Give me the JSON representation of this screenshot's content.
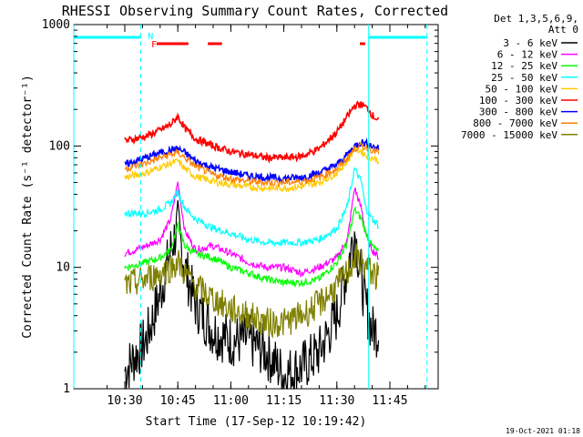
{
  "chart_data": {
    "type": "line",
    "title": "RHESSI Observing Summary Count Rates, Corrected",
    "xlabel": "Start Time (17-Sep-12 10:19:42)",
    "ylabel": "Corrected Count Rate (s⁻¹ detector⁻¹)",
    "yscale": "log",
    "ylim": [
      1,
      1000
    ],
    "xlim_minutes": [
      21.3,
      80.0
    ],
    "x_ticks": [
      {
        "t": 30,
        "label": "10:30"
      },
      {
        "t": 45,
        "label": "10:45"
      },
      {
        "t": 60,
        "label": "11:00"
      },
      {
        "t": 75,
        "label": "11:15"
      },
      {
        "t": 90,
        "label": "11:30"
      },
      {
        "t": 105,
        "label": "11:45"
      }
    ],
    "y_ticks": [
      {
        "v": 1,
        "label": "1"
      },
      {
        "v": 10,
        "label": "10"
      },
      {
        "v": 100,
        "label": "100"
      },
      {
        "v": 1000,
        "label": "1000"
      }
    ],
    "legend_header": [
      "Det 1,3,5,6,9,",
      "Att 0"
    ],
    "legend_position": "right",
    "series": [
      {
        "name": "3 - 6 keV",
        "color": "#000000",
        "x": [
          30,
          36,
          40,
          43,
          45,
          47,
          50,
          55,
          60,
          65,
          70,
          75,
          80,
          85,
          90,
          93,
          95,
          97,
          98,
          99,
          100,
          102
        ],
        "values": [
          1.4,
          2.5,
          6,
          14,
          22,
          10,
          5,
          3,
          2.5,
          2.5,
          2,
          1.3,
          1.5,
          2,
          4,
          10,
          20,
          8,
          5,
          4,
          3,
          3
        ]
      },
      {
        "name": "6 - 12 keV",
        "color": "#ff00ff",
        "x": [
          30,
          36,
          40,
          43,
          45,
          47,
          50,
          55,
          60,
          65,
          70,
          75,
          80,
          85,
          90,
          93,
          95,
          97,
          98,
          99,
          100,
          102
        ],
        "values": [
          13,
          15,
          17,
          25,
          50,
          20,
          14,
          15,
          13,
          11,
          10,
          10,
          9,
          10,
          12,
          17,
          45,
          30,
          20,
          16,
          14,
          12
        ]
      },
      {
        "name": "12 - 25 keV",
        "color": "#00ff00",
        "x": [
          30,
          36,
          40,
          43,
          45,
          47,
          50,
          55,
          60,
          65,
          70,
          75,
          80,
          85,
          90,
          93,
          95,
          97,
          98,
          99,
          100,
          102
        ],
        "values": [
          10,
          11,
          12,
          14,
          22,
          15,
          13,
          12,
          10,
          9,
          8,
          7.5,
          7.5,
          8,
          11,
          16,
          30,
          25,
          20,
          17,
          15,
          13
        ]
      },
      {
        "name": "25 - 50 keV",
        "color": "#00ffff",
        "x": [
          30,
          36,
          40,
          43,
          45,
          47,
          50,
          55,
          60,
          65,
          70,
          75,
          80,
          85,
          90,
          93,
          95,
          97,
          98,
          99,
          100,
          102
        ],
        "values": [
          28,
          28,
          30,
          34,
          42,
          31,
          25,
          21,
          19,
          17,
          16,
          16,
          16,
          17,
          21,
          32,
          65,
          50,
          32,
          28,
          25,
          22
        ]
      },
      {
        "name": "50 - 100 keV",
        "color": "#ffcc00",
        "x": [
          30,
          36,
          40,
          43,
          45,
          47,
          50,
          55,
          60,
          65,
          70,
          75,
          80,
          85,
          90,
          93,
          95,
          97,
          98,
          99,
          100,
          102
        ],
        "values": [
          55,
          60,
          67,
          72,
          75,
          65,
          56,
          51,
          48,
          46,
          45,
          45,
          46,
          50,
          60,
          75,
          95,
          90,
          85,
          82,
          80,
          76
        ]
      },
      {
        "name": "100 - 300 keV",
        "color": "#ff0000",
        "x": [
          30,
          36,
          40,
          43,
          45,
          47,
          50,
          55,
          60,
          65,
          70,
          75,
          80,
          85,
          90,
          93,
          95,
          97,
          98,
          99,
          100,
          102
        ],
        "values": [
          110,
          120,
          135,
          150,
          175,
          140,
          115,
          100,
          90,
          85,
          80,
          80,
          82,
          95,
          130,
          175,
          215,
          220,
          210,
          200,
          180,
          160
        ]
      },
      {
        "name": "300 - 800 keV",
        "color": "#0000ff",
        "x": [
          30,
          36,
          40,
          43,
          45,
          47,
          50,
          55,
          60,
          65,
          70,
          75,
          80,
          85,
          90,
          93,
          95,
          97,
          98,
          99,
          100,
          102
        ],
        "values": [
          70,
          80,
          88,
          92,
          95,
          88,
          75,
          66,
          61,
          57,
          55,
          54,
          55,
          60,
          70,
          85,
          100,
          108,
          105,
          103,
          100,
          95
        ]
      },
      {
        "name": "800 - 7000 keV",
        "color": "#ff7f00",
        "x": [
          30,
          36,
          40,
          43,
          45,
          47,
          50,
          55,
          60,
          65,
          70,
          75,
          80,
          85,
          90,
          93,
          95,
          97,
          98,
          99,
          100,
          102
        ],
        "values": [
          65,
          72,
          80,
          85,
          88,
          80,
          68,
          58,
          54,
          51,
          50,
          50,
          51,
          55,
          65,
          80,
          95,
          100,
          98,
          96,
          93,
          88
        ]
      },
      {
        "name": "7000 - 15000 keV",
        "color": "#808000",
        "x": [
          30,
          36,
          40,
          43,
          45,
          47,
          50,
          55,
          60,
          65,
          70,
          75,
          80,
          85,
          90,
          93,
          95,
          97,
          98,
          99,
          100,
          102
        ],
        "values": [
          7,
          8,
          9,
          10,
          11,
          9,
          7,
          5.5,
          4.5,
          4,
          3.5,
          3.5,
          4,
          5,
          7,
          9,
          12,
          11,
          10,
          10,
          9,
          8
        ]
      }
    ],
    "flags": [
      {
        "label": "N",
        "color": "#00ffff"
      },
      {
        "label": "F",
        "color": "#ff0000"
      }
    ],
    "night_line_color": "#00ffff",
    "flare_flag_color": "#ff0000"
  },
  "timestamp": "19-Oct-2021 01:18"
}
